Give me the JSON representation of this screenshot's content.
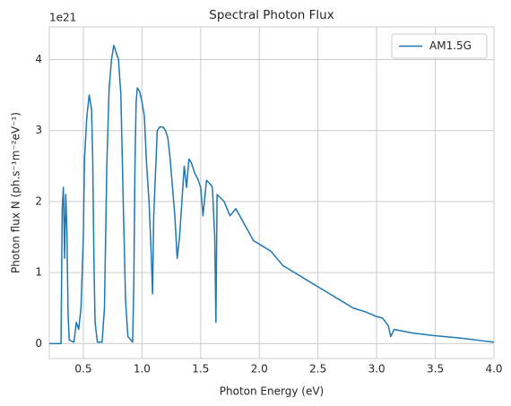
{
  "chart_data": {
    "type": "line",
    "title": "Spectral Photon Flux",
    "xlabel": "Photon Energy (eV)",
    "ylabel": "Photon flux N (ph.s⁻¹m⁻²eV⁻¹)",
    "y_offset_label": "1e21",
    "x": [
      0.2,
      0.31,
      0.32,
      0.33,
      0.34,
      0.35,
      0.36,
      0.37,
      0.38,
      0.42,
      0.44,
      0.46,
      0.48,
      0.5,
      0.51,
      0.53,
      0.55,
      0.57,
      0.58,
      0.59,
      0.6,
      0.62,
      0.66,
      0.68,
      0.7,
      0.72,
      0.74,
      0.76,
      0.78,
      0.8,
      0.82,
      0.84,
      0.86,
      0.88,
      0.92,
      0.93,
      0.94,
      0.95,
      0.96,
      0.98,
      1.0,
      1.02,
      1.04,
      1.06,
      1.08,
      1.09,
      1.1,
      1.12,
      1.13,
      1.15,
      1.18,
      1.2,
      1.22,
      1.24,
      1.26,
      1.28,
      1.3,
      1.32,
      1.34,
      1.36,
      1.38,
      1.4,
      1.42,
      1.45,
      1.48,
      1.5,
      1.52,
      1.55,
      1.58,
      1.6,
      1.62,
      1.63,
      1.64,
      1.7,
      1.75,
      1.8,
      1.85,
      1.9,
      1.95,
      2.0,
      2.1,
      2.2,
      2.3,
      2.4,
      2.5,
      2.6,
      2.7,
      2.8,
      2.9,
      3.0,
      3.05,
      3.1,
      3.12,
      3.15,
      3.3,
      3.5,
      3.7,
      3.9,
      4.0
    ],
    "series": [
      {
        "name": "AM1.5G",
        "color": "#1f77b4",
        "values": [
          0,
          0,
          1.9,
          2.2,
          1.2,
          2.1,
          1.6,
          0.4,
          0.05,
          0.02,
          0.3,
          0.2,
          0.5,
          1.5,
          2.6,
          3.2,
          3.5,
          3.3,
          2.6,
          1.2,
          0.3,
          0.02,
          0.02,
          0.5,
          2.5,
          3.6,
          4.0,
          4.2,
          4.1,
          4.0,
          3.5,
          2.0,
          0.6,
          0.1,
          0.02,
          0.8,
          2.5,
          3.4,
          3.6,
          3.55,
          3.4,
          3.2,
          2.5,
          2.0,
          1.2,
          0.7,
          1.8,
          2.6,
          3.0,
          3.05,
          3.05,
          3.0,
          2.9,
          2.6,
          2.2,
          1.8,
          1.2,
          1.5,
          2.0,
          2.5,
          2.2,
          2.6,
          2.55,
          2.4,
          2.3,
          2.2,
          1.8,
          2.3,
          2.25,
          2.2,
          1.5,
          0.3,
          2.1,
          2.0,
          1.8,
          1.9,
          1.75,
          1.6,
          1.45,
          1.4,
          1.3,
          1.1,
          1.0,
          0.9,
          0.8,
          0.7,
          0.6,
          0.5,
          0.45,
          0.38,
          0.36,
          0.25,
          0.1,
          0.2,
          0.15,
          0.11,
          0.08,
          0.04,
          0.02
        ]
      }
    ],
    "xlim": [
      0.21,
      4.0
    ],
    "ylim": [
      -0.21,
      4.46
    ],
    "xticks": [
      0.5,
      {
        "value": 1,
        "label": "1.0"
      },
      1.5,
      {
        "value": 2,
        "label": "2.0"
      },
      2.5,
      {
        "value": 3,
        "label": "3.0"
      },
      3.5,
      {
        "value": 4,
        "label": "4.0"
      }
    ],
    "yticks": [
      0,
      1,
      2,
      3,
      4
    ],
    "grid": true,
    "legend": "upper right"
  }
}
